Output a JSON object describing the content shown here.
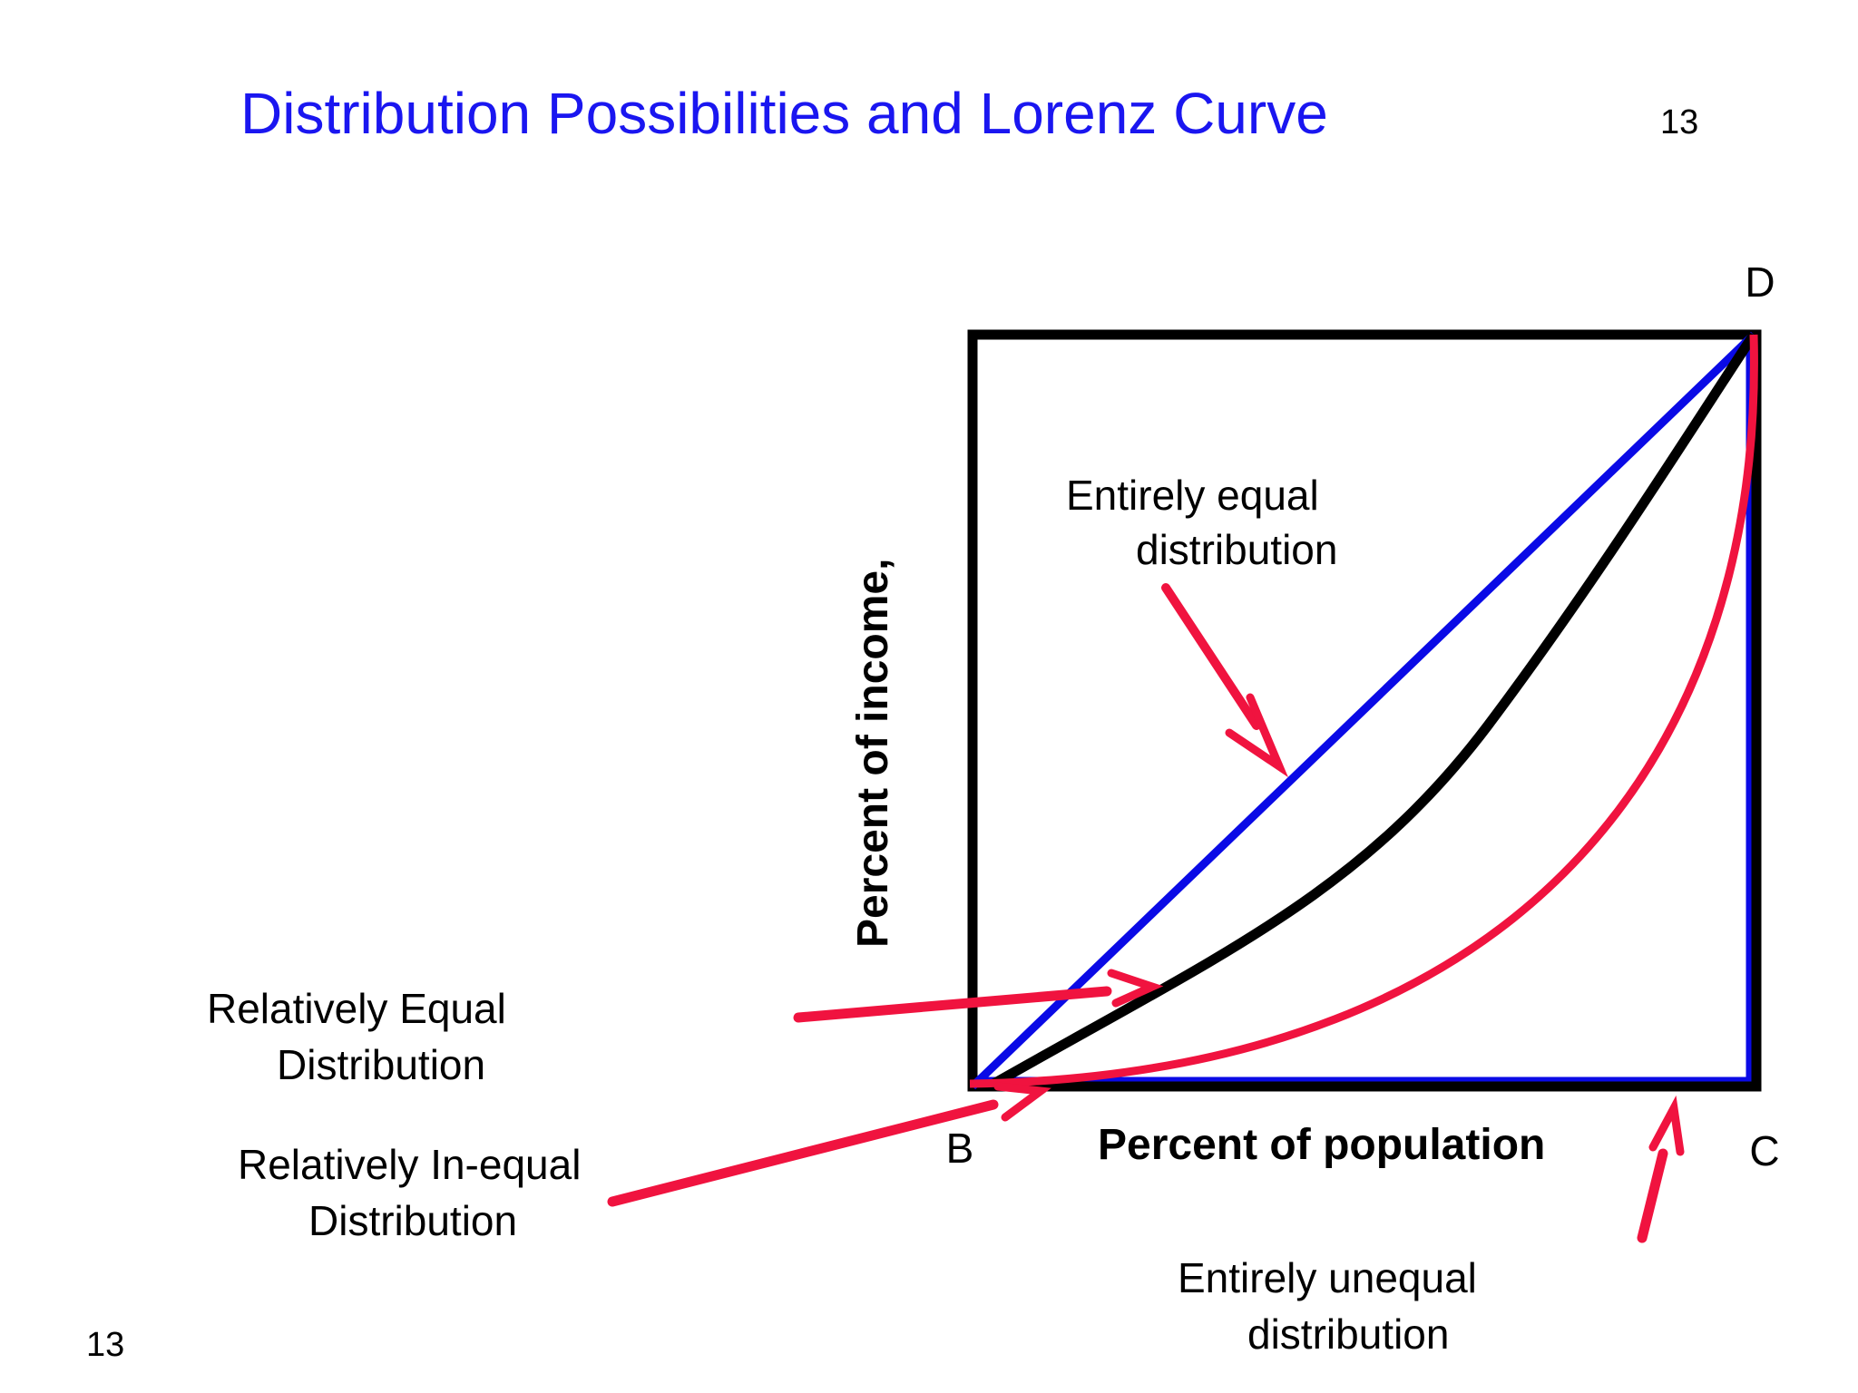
{
  "title": "Distribution Possibilities and Lorenz Curve",
  "slide_number_top": "13",
  "slide_number_bottom": "13",
  "axes": {
    "y_label": "Percent of income,",
    "x_label": "Percent of population"
  },
  "points": {
    "b": "B",
    "c": "C",
    "d": "D"
  },
  "annotations": {
    "entirely_equal": [
      "Entirely equal",
      "distribution"
    ],
    "relatively_equal": [
      "Relatively Equal",
      "Distribution"
    ],
    "relatively_inequal": [
      "Relatively In-equal",
      "Distribution"
    ],
    "entirely_unequal": [
      "Entirely unequal",
      "distribution"
    ]
  },
  "colors": {
    "title": "#1a16f0",
    "equality_line": "#0a0ae6",
    "lorenz_curve": "#000000",
    "inequal_curve": "#f0133f",
    "arrow": "#f0133f",
    "frame": "#000000"
  }
}
